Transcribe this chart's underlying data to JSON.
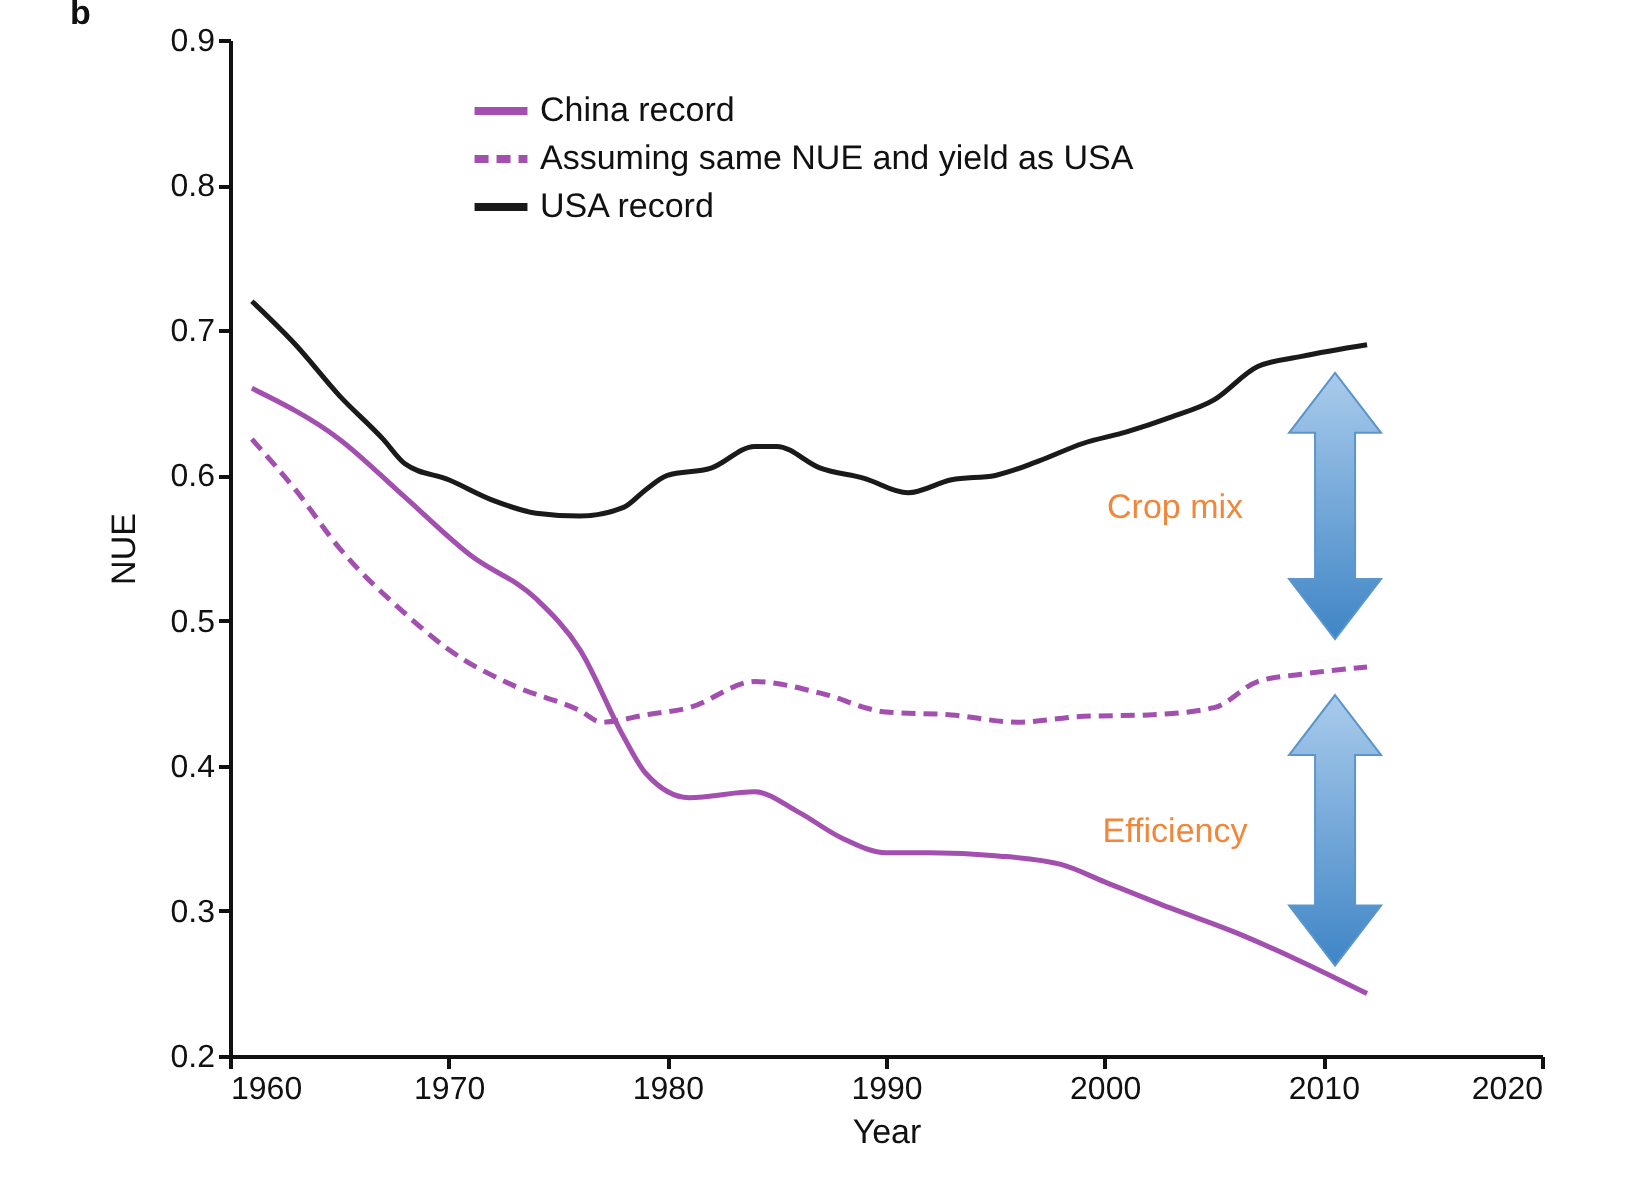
{
  "chart_data": {
    "type": "line",
    "title": "b",
    "xlabel": "Year",
    "ylabel": "NUE",
    "xlim": [
      1960,
      2020
    ],
    "xticks": [
      1960,
      1970,
      1980,
      1990,
      2000,
      2010,
      2020
    ],
    "ylim": [
      0.2,
      0.9
    ],
    "yticks": [
      0.2,
      0.3,
      0.4,
      0.5,
      0.6,
      0.7,
      0.8,
      0.9
    ],
    "grid": false,
    "legend": "top left",
    "series": [
      {
        "name": "China record",
        "color": "#a24fb0",
        "line_style": "solid",
        "x": [
          1961,
          1965,
          1968,
          1971,
          1974,
          1976,
          1978,
          1979,
          1981,
          1984,
          1986,
          1988,
          1990,
          1992,
          1995,
          1998,
          2000,
          2003,
          2006,
          2009,
          2012
        ],
        "values": [
          0.66,
          0.625,
          0.585,
          0.545,
          0.515,
          0.48,
          0.42,
          0.395,
          0.378,
          0.382,
          0.368,
          0.35,
          0.34,
          0.34,
          0.338,
          0.332,
          0.32,
          0.302,
          0.285,
          0.265,
          0.243
        ]
      },
      {
        "name": "Assuming same NUE and yield as USA",
        "color": "#a24fb0",
        "line_style": "dashed",
        "x": [
          1961,
          1963,
          1965,
          1968,
          1970,
          1973,
          1976,
          1977,
          1979,
          1981,
          1984,
          1987,
          1990,
          1993,
          1996,
          1999,
          2002,
          2005,
          2007,
          2009,
          2012
        ],
        "values": [
          0.625,
          0.59,
          0.55,
          0.505,
          0.48,
          0.455,
          0.438,
          0.43,
          0.435,
          0.44,
          0.458,
          0.45,
          0.437,
          0.435,
          0.43,
          0.434,
          0.435,
          0.44,
          0.458,
          0.463,
          0.468
        ]
      },
      {
        "name": "USA record",
        "color": "#1a1a1a",
        "line_style": "solid",
        "x": [
          1961,
          1963,
          1965,
          1967,
          1968,
          1970,
          1972,
          1974,
          1976,
          1978,
          1979,
          1980,
          1982,
          1984,
          1985,
          1987,
          1989,
          1991,
          1993,
          1995,
          1997,
          1999,
          2001,
          2003,
          2005,
          2007,
          2009,
          2012
        ],
        "values": [
          0.72,
          0.69,
          0.655,
          0.625,
          0.608,
          0.597,
          0.583,
          0.574,
          0.572,
          0.578,
          0.59,
          0.6,
          0.605,
          0.62,
          0.62,
          0.605,
          0.598,
          0.588,
          0.597,
          0.6,
          0.61,
          0.622,
          0.63,
          0.64,
          0.652,
          0.675,
          0.682,
          0.69
        ]
      }
    ],
    "annotations": [
      "Crop mix",
      "Efficiency"
    ]
  }
}
